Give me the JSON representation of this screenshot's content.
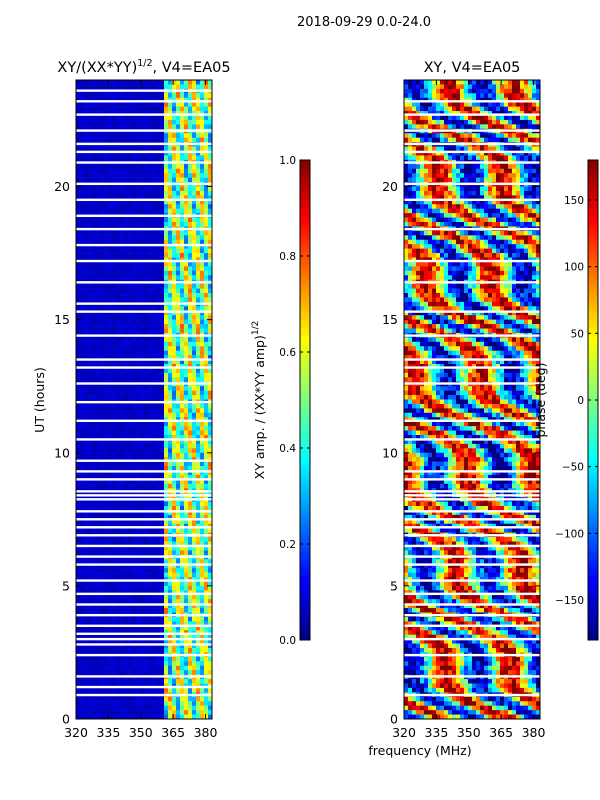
{
  "colors": {
    "jet": [
      "#00007f",
      "#0000ff",
      "#007fff",
      "#00ffff",
      "#7fff7f",
      "#ffff00",
      "#ff7f00",
      "#ff0000",
      "#7f0000"
    ],
    "background": "#ffffff",
    "axis": "#000000"
  },
  "chart_data": [
    {
      "type": "heatmap",
      "suptitle": "2018-09-29 0.0-24.0",
      "title": "XY/(XX*YY)^1/2, V4=EA05",
      "title_parts": {
        "main": "XY/(XX*YY)",
        "sup": "1/2",
        "tail": ", V4=EA05"
      },
      "xlabel": "frequency (MHz)",
      "ylabel": "UT (hours)",
      "xlim": [
        320,
        383
      ],
      "ylim": [
        0,
        24
      ],
      "xticks": [
        320,
        335,
        350,
        365,
        380
      ],
      "yticks": [
        0,
        5,
        10,
        15,
        20
      ],
      "colorbar": {
        "label": "XY amp. / (XX*YY amp)^1/2",
        "label_parts": {
          "main": "XY amp. / (XX*YY amp)",
          "sup": "1/2"
        },
        "range": [
          0.0,
          1.0
        ],
        "ticks": [
          0.0,
          0.2,
          0.4,
          0.6,
          0.8,
          1.0
        ],
        "tick_labels": [
          "0.0",
          "0.2",
          "0.4",
          "0.6",
          "0.8",
          "1.0"
        ]
      },
      "description_values": {
        "low_freq_band_level": 0.05,
        "high_freq_band": [
          360,
          383
        ],
        "high_freq_band_level_range": [
          0.3,
          0.7
        ]
      },
      "flagged_hours": [
        0.9,
        1.2,
        1.6,
        2.4,
        2.8,
        3.0,
        3.2,
        3.5,
        3.9,
        4.3,
        4.7,
        5.2,
        5.8,
        6.1,
        6.5,
        6.9,
        7.2,
        7.5,
        7.8,
        8.25,
        8.4,
        8.55,
        9.0,
        9.3,
        9.7,
        10.5,
        11.2,
        11.9,
        12.6,
        13.2,
        13.5,
        14.4,
        15.3,
        15.6,
        16.4,
        17.2,
        17.8,
        18.4,
        18.9,
        19.5,
        20.1,
        20.9,
        21.3,
        21.6,
        22.1,
        22.7,
        23.2,
        23.6
      ]
    },
    {
      "type": "heatmap",
      "title": "XY, V4=EA05",
      "xlim": [
        320,
        383
      ],
      "ylim": [
        0,
        24
      ],
      "xticks": [
        320,
        335,
        350,
        365,
        380
      ],
      "yticks": [
        0,
        5,
        10,
        15,
        20
      ],
      "colorbar": {
        "label": "phase (deg)",
        "range": [
          -180,
          180
        ],
        "ticks": [
          -150,
          -100,
          -50,
          0,
          50,
          100,
          150
        ],
        "tick_labels": [
          "−150",
          "−100",
          "−50",
          "0",
          "50",
          "100",
          "150"
        ]
      },
      "flagged_hours": [
        0.9,
        1.6,
        2.4,
        3.0,
        3.5,
        3.9,
        4.3,
        4.7,
        5.2,
        5.8,
        6.1,
        6.5,
        6.9,
        7.2,
        7.5,
        7.8,
        8.25,
        8.4,
        8.55,
        9.0,
        9.3,
        10.5,
        11.2,
        12.6,
        13.2,
        13.5,
        14.4,
        15.3,
        16.4,
        17.2,
        18.4,
        19.5,
        20.1,
        20.9,
        21.3,
        21.6,
        22.1,
        22.7,
        23.2
      ]
    }
  ]
}
